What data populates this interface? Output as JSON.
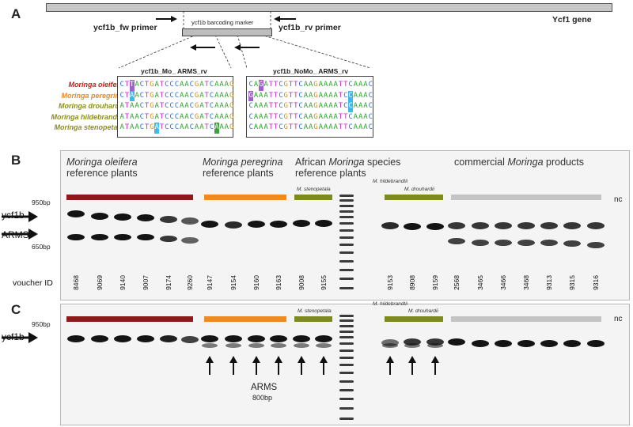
{
  "colors": {
    "oleifera": "#8b1a1a",
    "peregrina": "#ee8a1e",
    "african": "#7d8a1f",
    "commercial": "#c4c4c4",
    "species_oleifera_text": "#c02020",
    "species_peregrina_text": "#e88a20",
    "species_other_text": "#8b8e20"
  },
  "panel_a": {
    "letter": "A",
    "gene_label": "Ycf1 gene",
    "fw_primer": "ycf1b_fw primer",
    "rv_primer": "ycf1b_rv primer",
    "marker_label": "ycf1b barcoding marker",
    "alignment_left_title": "ycf1b_Mo_ ARMS_rv",
    "alignment_right_title": "ycf1b_NoMo_ ARMS_rv",
    "species": [
      {
        "name": "Moringa oleifera",
        "color": "#c02020"
      },
      {
        "name": "Moringa peregrina",
        "color": "#e88a20"
      },
      {
        "name": "Moringa drouhardii",
        "color": "#8b8e20"
      },
      {
        "name": "Moringa hildebrandtii",
        "color": "#8b8e20"
      },
      {
        "name": "Moringa stenopetala",
        "color": "#8b8e20"
      }
    ],
    "left_sequences": [
      "CTTACTGATCCCAACGATCAAAG",
      "CTAACTGATCCCAACGATCAAAG",
      "ATAACTGATCCCAACGATCAAAG",
      "ATAACTGATCCCAACGATCAAAG",
      "ATAACTGATCCCAACAATCAAAG"
    ],
    "right_sequences": [
      "CAGATTCGTTCAAGAAAATTCAAAC",
      "GAAATTCGTTCAAGAAAATCCAAAC",
      "CAAATTCGTTCAAGAAAATCCAAAC",
      "CAAATTCGTTCAAGAAAATTCAAAC",
      "CAAATTCGTTCAAGAAAATTCAAAC"
    ]
  },
  "panel_b": {
    "letter": "B",
    "groups": {
      "oleifera_title_italic": "Moringa oleifera",
      "oleifera_title_rest": "reference plants",
      "peregrina_title_italic": "Moringa peregrina",
      "peregrina_title_rest": "reference plants",
      "african_line1_a": "African ",
      "african_line1_italic": "Moringa",
      "african_line1_b": " species",
      "african_line2": "reference plants",
      "commercial_a": "commercial ",
      "commercial_italic": "Moringa",
      "commercial_b": " products"
    },
    "sub_labels": {
      "stenopetala": "M. stenopetala",
      "hildebrandtii": "M. hildebrandtii",
      "drouhardii": "M. drouhardii"
    },
    "size_upper": "950bp",
    "size_lower": "650bp",
    "band_ycf1b": "ycf1b",
    "band_arms": "ARMS",
    "voucher_label": "voucher ID",
    "nc_label": "nc",
    "vouchers": [
      "8468",
      "9069",
      "9140",
      "9007",
      "9174",
      "9260",
      "9147",
      "9154",
      "9160",
      "9163",
      "9008",
      "9155",
      "9153",
      "8908",
      "9159",
      "2568",
      "3465",
      "3466",
      "3468",
      "9313",
      "9315",
      "9316"
    ]
  },
  "panel_c": {
    "letter": "C",
    "sub_labels": {
      "stenopetala": "M. stenopetala",
      "hildebrandtii": "M. hildebrandtii",
      "drouhardii": "M. drouhardii"
    },
    "size_upper": "950bp",
    "band_ycf1b": "ycf1b",
    "arms_label": "ARMS",
    "arms_size": "800bp",
    "nc_label": "nc"
  }
}
